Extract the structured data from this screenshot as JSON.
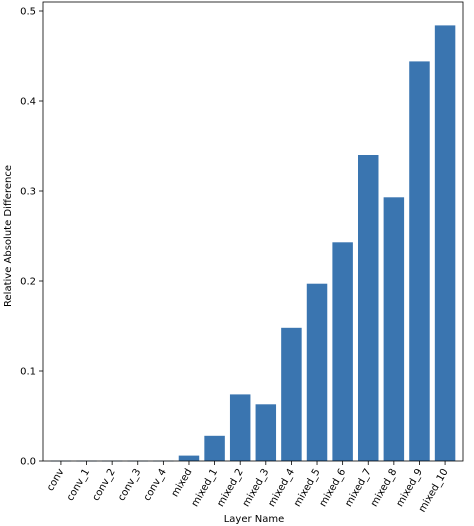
{
  "chart_data": {
    "type": "bar",
    "title": "",
    "xlabel": "Layer Name",
    "ylabel": "Relative Absolute Difference",
    "categories": [
      "conv",
      "conv_1",
      "conv_2",
      "conv_3",
      "conv_4",
      "mixed",
      "mixed_1",
      "mixed_2",
      "mixed_3",
      "mixed_4",
      "mixed_5",
      "mixed_6",
      "mixed_7",
      "mixed_8",
      "mixed_9",
      "mixed_10"
    ],
    "values": [
      0.0003,
      0.0003,
      0.0003,
      0.0003,
      0.0003,
      0.006,
      0.028,
      0.074,
      0.063,
      0.148,
      0.197,
      0.243,
      0.34,
      0.293,
      0.444,
      0.484
    ],
    "ylim": [
      0,
      0.51
    ],
    "yticks": [
      0.0,
      0.1,
      0.2,
      0.3,
      0.4,
      0.5
    ],
    "ytick_labels": [
      "0.0",
      "0.1",
      "0.2",
      "0.3",
      "0.4",
      "0.5"
    ],
    "grid": false,
    "bar_color": "#3a75b0"
  }
}
